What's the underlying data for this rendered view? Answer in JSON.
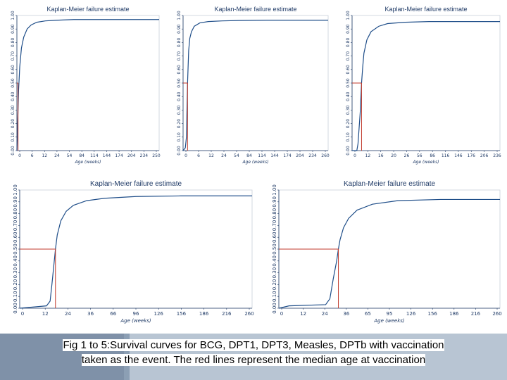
{
  "caption": {
    "line1": "Fig 1 to 5:Survival curves for BCG, DPT1, DPT3, Measles, DPTb with vaccination",
    "line2": "taken as the event. The red lines represent the median age at vaccination"
  },
  "colors": {
    "curve": "#1f4e89",
    "median": "#c0392b",
    "axis": "#1f3a66"
  },
  "chart_data": [
    {
      "type": "line",
      "title": "Kaplan-Meier failure estimate",
      "xlabel": "Age (weeks)",
      "ylabel": "",
      "xticks": [
        "0",
        "6",
        "12",
        "24",
        "54",
        "84",
        "114",
        "144",
        "174",
        "204",
        "234",
        "250"
      ],
      "yticks": [
        "0.00",
        "0.10",
        "0.20",
        "0.30",
        "0.40",
        "0.50",
        "0.60",
        "0.70",
        "0.80",
        "0.90",
        "1.00"
      ],
      "xlim": [
        0,
        250
      ],
      "ylim": [
        0,
        1
      ],
      "series": [
        {
          "x": [
            0,
            1,
            3,
            5,
            8,
            12,
            18,
            25,
            35,
            50,
            70,
            100,
            150,
            200,
            250
          ],
          "y": [
            0,
            0.15,
            0.45,
            0.62,
            0.76,
            0.84,
            0.9,
            0.93,
            0.95,
            0.96,
            0.965,
            0.97,
            0.97,
            0.97,
            0.97
          ]
        }
      ],
      "median_x": 2
    },
    {
      "type": "line",
      "title": "Kaplan-Meier failure estimate",
      "xlabel": "Age (weeks)",
      "ylabel": "",
      "xticks": [
        "0",
        "6",
        "12",
        "24",
        "54",
        "84",
        "114",
        "144",
        "174",
        "204",
        "234",
        "260"
      ],
      "yticks": [
        "0.00",
        "0.10",
        "0.20",
        "0.30",
        "0.40",
        "0.50",
        "0.60",
        "0.70",
        "0.80",
        "0.90",
        "1.00"
      ],
      "xlim": [
        0,
        260
      ],
      "ylim": [
        0,
        1
      ],
      "series": [
        {
          "x": [
            0,
            4,
            6,
            8,
            10,
            12,
            15,
            20,
            30,
            45,
            70,
            100,
            150,
            200,
            260
          ],
          "y": [
            0,
            0.02,
            0.1,
            0.5,
            0.74,
            0.83,
            0.88,
            0.92,
            0.945,
            0.955,
            0.96,
            0.963,
            0.965,
            0.965,
            0.965
          ]
        }
      ],
      "median_x": 8
    },
    {
      "type": "line",
      "title": "Kaplan-Meier failure estimate",
      "xlabel": "Age (weeks)",
      "ylabel": "",
      "xticks": [
        "0",
        "12",
        "16",
        "20",
        "26",
        "56",
        "86",
        "116",
        "146",
        "176",
        "206",
        "236"
      ],
      "yticks": [
        "0.00",
        "0.10",
        "0.20",
        "0.30",
        "0.40",
        "0.50",
        "0.60",
        "0.70",
        "0.80",
        "0.90",
        "1.00"
      ],
      "xlim": [
        0,
        250
      ],
      "ylim": [
        0,
        1
      ],
      "series": [
        {
          "x": [
            0,
            8,
            10,
            14,
            16,
            18,
            20,
            25,
            32,
            45,
            60,
            90,
            130,
            180,
            250
          ],
          "y": [
            0,
            0,
            0.05,
            0.3,
            0.5,
            0.62,
            0.72,
            0.82,
            0.88,
            0.92,
            0.94,
            0.95,
            0.955,
            0.955,
            0.955
          ]
        }
      ],
      "median_x": 16
    },
    {
      "type": "line",
      "title": "Kaplan-Meier failure estimate",
      "xlabel": "Age (weeks)",
      "ylabel": "",
      "xticks": [
        "0",
        "12",
        "24",
        "36",
        "66",
        "96",
        "126",
        "156",
        "186",
        "216",
        "260"
      ],
      "yticks": [
        "0.00",
        "0.10",
        "0.20",
        "0.30",
        "0.40",
        "0.50",
        "0.60",
        "0.70",
        "0.80",
        "0.90",
        "1.00"
      ],
      "xlim": [
        0,
        260
      ],
      "ylim": [
        0,
        1
      ],
      "series": [
        {
          "x": [
            0,
            30,
            34,
            36,
            38,
            40,
            42,
            46,
            52,
            60,
            75,
            95,
            130,
            180,
            260
          ],
          "y": [
            0,
            0.02,
            0.06,
            0.2,
            0.35,
            0.5,
            0.62,
            0.74,
            0.82,
            0.87,
            0.91,
            0.93,
            0.945,
            0.95,
            0.95
          ]
        }
      ],
      "median_x": 40
    },
    {
      "type": "line",
      "title": "Kaplan-Meier failure estimate",
      "xlabel": "Age (weeks)",
      "ylabel": "",
      "xticks": [
        "0",
        "12",
        "24",
        "36",
        "65",
        "95",
        "126",
        "156",
        "186",
        "216",
        "260"
      ],
      "yticks": [
        "0.00",
        "0.10",
        "0.20",
        "0.30",
        "0.40",
        "0.50",
        "0.60",
        "0.70",
        "0.80",
        "0.90",
        "1.00"
      ],
      "xlim": [
        0,
        260
      ],
      "ylim": [
        0,
        1
      ],
      "series": [
        {
          "x": [
            0,
            12,
            55,
            60,
            64,
            68,
            70,
            72,
            76,
            82,
            92,
            110,
            140,
            190,
            260
          ],
          "y": [
            0,
            0.02,
            0.03,
            0.08,
            0.25,
            0.4,
            0.5,
            0.58,
            0.68,
            0.76,
            0.83,
            0.88,
            0.91,
            0.92,
            0.92
          ]
        }
      ],
      "median_x": 70
    }
  ]
}
